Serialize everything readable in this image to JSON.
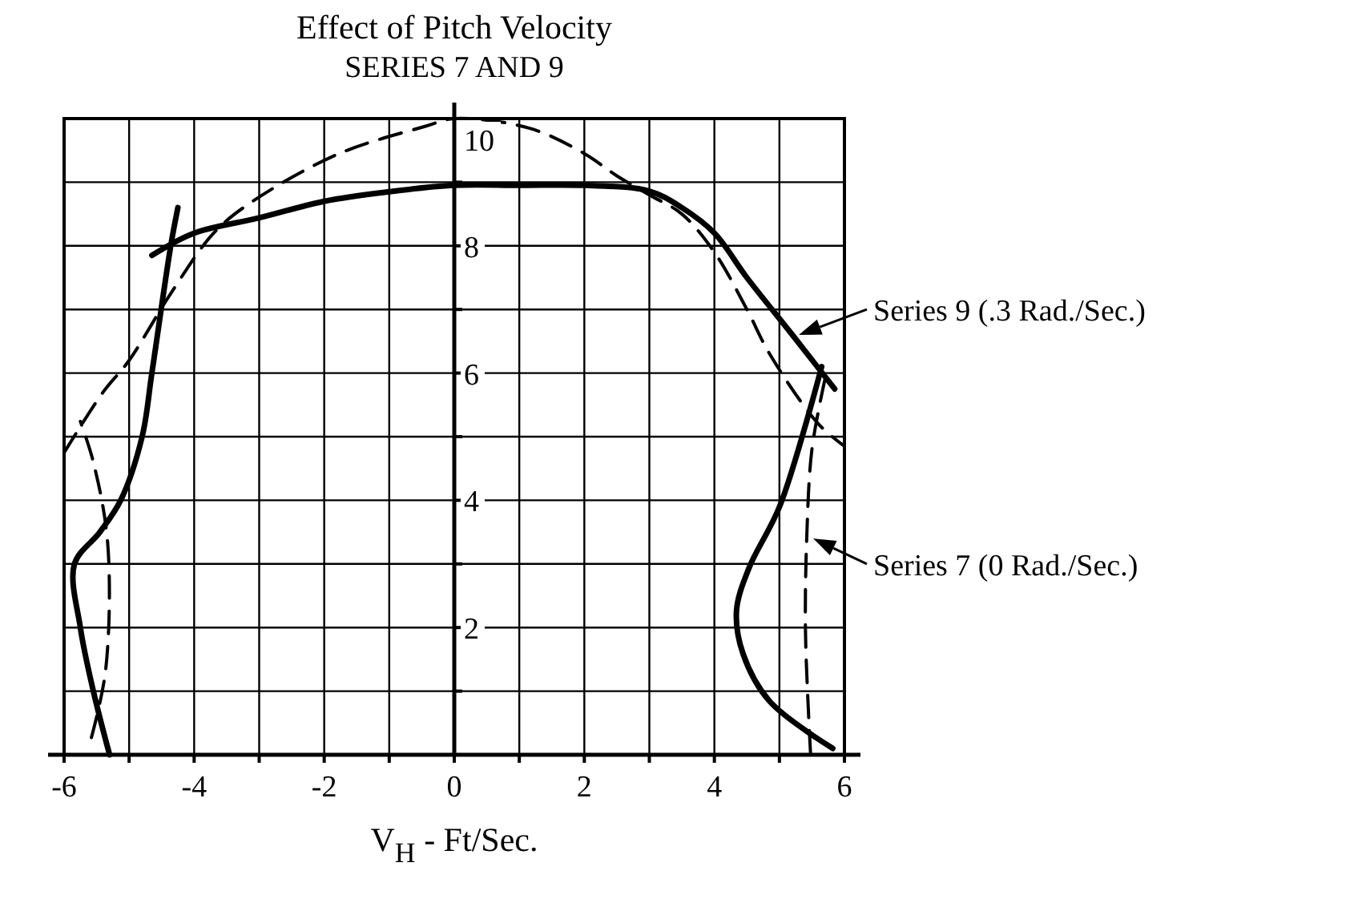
{
  "chart_data": {
    "type": "line",
    "title": "Effect of Pitch Velocity",
    "subtitle": "SERIES 7 AND 9",
    "xlabel": "V$_{H}$ - Ft/Sec.",
    "xlim": [
      -6,
      6
    ],
    "ylim": [
      0,
      10
    ],
    "xticks": [
      -6,
      {
        "value": -5,
        "label": null
      },
      -4,
      {
        "value": -3,
        "label": null
      },
      -2,
      {
        "value": -1,
        "label": null
      },
      0,
      {
        "value": 1,
        "label": null
      },
      2,
      {
        "value": 3,
        "label": null
      },
      4,
      {
        "value": 5,
        "label": null
      },
      6
    ],
    "yticks": [
      {
        "value": 1,
        "label": null
      },
      2,
      {
        "value": 3,
        "label": null
      },
      4,
      {
        "value": 5,
        "label": null
      },
      6,
      {
        "value": 7,
        "label": null
      },
      8,
      {
        "value": 9,
        "label": null
      },
      10
    ],
    "grid": true,
    "legend": "right",
    "marker": "none",
    "series": [
      {
        "name": "Series 9 (.3 Rad./Sec.)",
        "color": "#000000",
        "line_style": "solid",
        "x": [
          -5.3,
          -5.55,
          -5.75,
          -5.84,
          -5.45,
          -5.13,
          -4.8,
          -4.65,
          -4.36,
          -4.25,
          null,
          -4.65,
          -4,
          -3,
          -2,
          -1,
          0,
          1,
          2,
          3,
          3.5,
          4,
          4.5,
          5.2,
          5.85,
          null,
          5.65,
          5.01,
          4.53,
          4.34,
          4.44,
          4.85,
          5.82
        ],
        "values": [
          0,
          1,
          2,
          3,
          3.5,
          4,
          5,
          6,
          8,
          8.6,
          null,
          7.85,
          8.2,
          8.44,
          8.7,
          8.85,
          8.95,
          8.95,
          8.95,
          8.86,
          8.6,
          8.2,
          7.5,
          6.6,
          5.75,
          null,
          6.1,
          3.92,
          2.93,
          2.26,
          1.59,
          0.84,
          0.1
        ]
      },
      {
        "name": "Series 7 (0 Rad./Sec.)",
        "color": "#000000",
        "line_style": "dashed",
        "x": [
          -5.58,
          -5.36,
          -5.33,
          -5.55,
          -5.75,
          null,
          -6,
          -5.4,
          -5,
          -4.36,
          -3.7,
          -3.1,
          -1.77,
          -0.44,
          0,
          1.15,
          2,
          2.5,
          3,
          3.5,
          4,
          4.5,
          4.85,
          5.6,
          6,
          null,
          5.7,
          5.5,
          5.42,
          5.4,
          5.45,
          5.48
        ],
        "values": [
          0.27,
          1.34,
          3.33,
          4.6,
          5.24,
          null,
          4.75,
          5.7,
          6.2,
          7.25,
          8.2,
          8.7,
          9.45,
          9.88,
          10,
          9.85,
          9.45,
          9.1,
          8.8,
          8.5,
          7.9,
          7,
          6.3,
          5.2,
          4.85,
          null,
          5.9,
          4.8,
          3.4,
          2,
          0.6,
          0
        ]
      }
    ]
  }
}
